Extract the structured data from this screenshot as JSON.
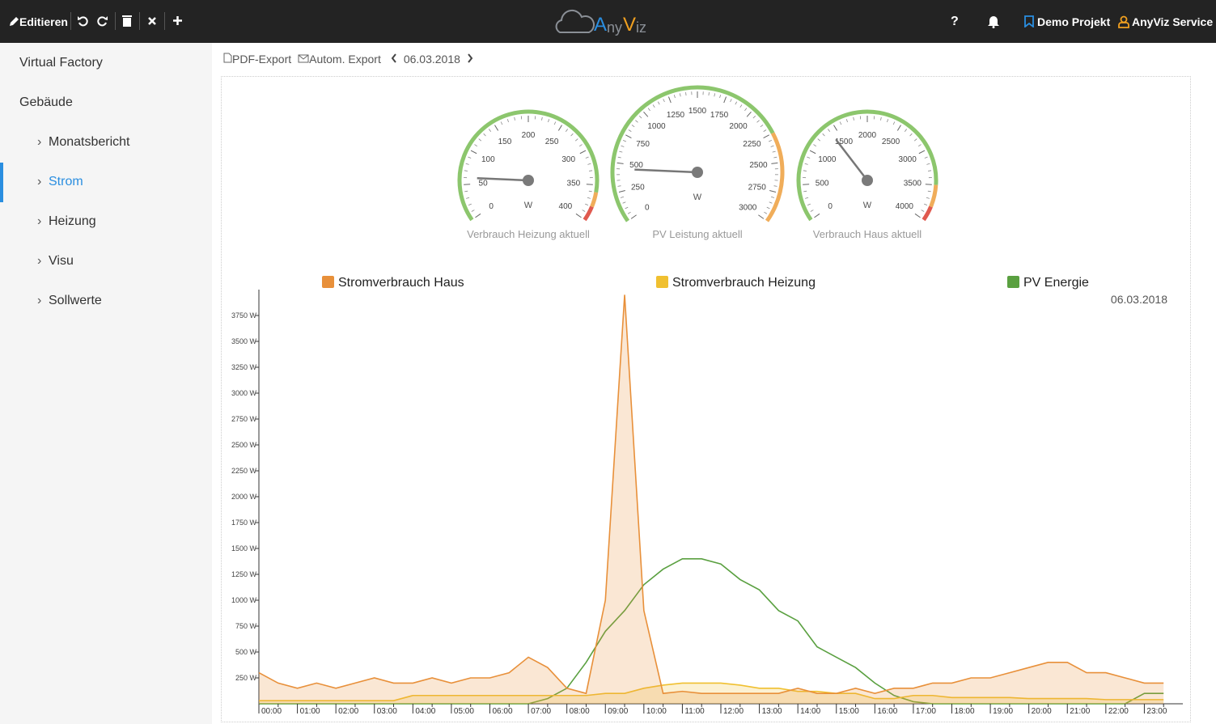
{
  "topbar": {
    "edit": "Editieren",
    "logo": [
      "A",
      "ny",
      "V",
      "iz"
    ],
    "help": "?",
    "project": "Demo Projekt",
    "user": "AnyViz Service"
  },
  "sidebar": {
    "items": [
      "Virtual Factory",
      "Gebäude",
      "Monatsbericht",
      "Strom",
      "Heizung",
      "Visu",
      "Sollwerte"
    ]
  },
  "toolbar": {
    "pdf": "PDF-Export",
    "auto": "Autom. Export",
    "date": "06.03.2018"
  },
  "gauges": [
    {
      "title": "Verbrauch Heizung aktuell",
      "unit": "W",
      "range": [
        0,
        400
      ],
      "ticks": [
        0,
        50,
        100,
        150,
        200,
        250,
        300,
        350,
        400
      ],
      "value": 60,
      "bands": [
        {
          "from": 0,
          "to": 360,
          "color": "#8cc66d"
        },
        {
          "from": 360,
          "to": 380,
          "color": "#f0ad5a"
        },
        {
          "from": 380,
          "to": 400,
          "color": "#e05a4f"
        }
      ]
    },
    {
      "title": "PV Leistung aktuell",
      "unit": "W",
      "range": [
        0,
        3000
      ],
      "ticks": [
        0,
        250,
        500,
        750,
        1000,
        1250,
        1500,
        1750,
        2000,
        2250,
        2500,
        2750,
        3000
      ],
      "value": 450,
      "bands": [
        {
          "from": 0,
          "to": 2250,
          "color": "#8cc66d"
        },
        {
          "from": 2250,
          "to": 3000,
          "color": "#f0ad5a"
        }
      ]
    },
    {
      "title": "Verbrauch Haus aktuell",
      "unit": "W",
      "range": [
        0,
        4000
      ],
      "ticks": [
        0,
        500,
        1000,
        1500,
        2000,
        2500,
        3000,
        3500,
        4000
      ],
      "value": 1400,
      "bands": [
        {
          "from": 0,
          "to": 3500,
          "color": "#8cc66d"
        },
        {
          "from": 3500,
          "to": 3800,
          "color": "#f0ad5a"
        },
        {
          "from": 3800,
          "to": 4000,
          "color": "#e05a4f"
        }
      ]
    }
  ],
  "chart_data": {
    "type": "line",
    "subtitle": "06.03.2018",
    "categories": [
      "00:00",
      null,
      "01:00",
      null,
      "02:00",
      null,
      "03:00",
      null,
      "04:00",
      null,
      "05:00",
      null,
      "06:00",
      null,
      "07:00",
      null,
      "08:00",
      null,
      "09:00",
      null,
      "10:00",
      null,
      "11:00",
      null,
      "12:00",
      null,
      "13:00",
      null,
      "14:00",
      null,
      "15:00",
      null,
      "16:00",
      null,
      "17:00",
      null,
      "18:00",
      null,
      "19:00",
      null,
      "20:00",
      null,
      "21:00",
      null,
      "22:00",
      null,
      "23:00",
      null
    ],
    "series": [
      {
        "name": "Stromverbrauch Haus",
        "color": "#e8903a",
        "fill": true,
        "values": [
          300,
          200,
          150,
          200,
          150,
          200,
          250,
          200,
          200,
          250,
          200,
          250,
          250,
          300,
          450,
          350,
          150,
          100,
          1000,
          3950,
          900,
          100,
          120,
          100,
          100,
          100,
          100,
          100,
          150,
          100,
          100,
          150,
          100,
          150,
          150,
          200,
          200,
          250,
          250,
          300,
          350,
          400,
          400,
          300,
          300,
          250,
          200,
          200
        ]
      },
      {
        "name": "Stromverbrauch Heizung",
        "color": "#f0c030",
        "fill": true,
        "values": [
          30,
          30,
          30,
          30,
          30,
          30,
          30,
          30,
          80,
          80,
          80,
          80,
          80,
          80,
          80,
          80,
          80,
          80,
          100,
          100,
          150,
          180,
          200,
          200,
          200,
          180,
          150,
          150,
          120,
          120,
          100,
          100,
          50,
          50,
          80,
          80,
          60,
          60,
          60,
          60,
          50,
          50,
          50,
          50,
          40,
          40,
          40,
          40
        ]
      },
      {
        "name": "PV Energie",
        "color": "#5aa040",
        "fill": false,
        "values": [
          0,
          0,
          0,
          0,
          0,
          0,
          0,
          0,
          0,
          0,
          0,
          0,
          0,
          0,
          0,
          50,
          150,
          400,
          700,
          900,
          1150,
          1300,
          1400,
          1400,
          1350,
          1200,
          1100,
          900,
          800,
          550,
          450,
          350,
          200,
          80,
          20,
          0,
          0,
          0,
          0,
          0,
          0,
          0,
          0,
          0,
          0,
          0,
          100,
          100
        ]
      }
    ],
    "ylim": [
      0,
      4000
    ],
    "yticks": [
      {
        "value": 250,
        "label": "250 W"
      },
      {
        "value": 500,
        "label": "500 W"
      },
      {
        "value": 750,
        "label": "750 W"
      },
      {
        "value": 1000,
        "label": "1000 W"
      },
      {
        "value": 1250,
        "label": "1250 W"
      },
      {
        "value": 1500,
        "label": "1500 W"
      },
      {
        "value": 1750,
        "label": "1750 W"
      },
      {
        "value": 2000,
        "label": "2000 W"
      },
      {
        "value": 2250,
        "label": "2250 W"
      },
      {
        "value": 2500,
        "label": "2500 W"
      },
      {
        "value": 2750,
        "label": "2750 W"
      },
      {
        "value": 3000,
        "label": "3000 W"
      },
      {
        "value": 3250,
        "label": "3250 W"
      },
      {
        "value": 3500,
        "label": "3500 W"
      },
      {
        "value": 3750,
        "label": "3750 W"
      }
    ]
  }
}
